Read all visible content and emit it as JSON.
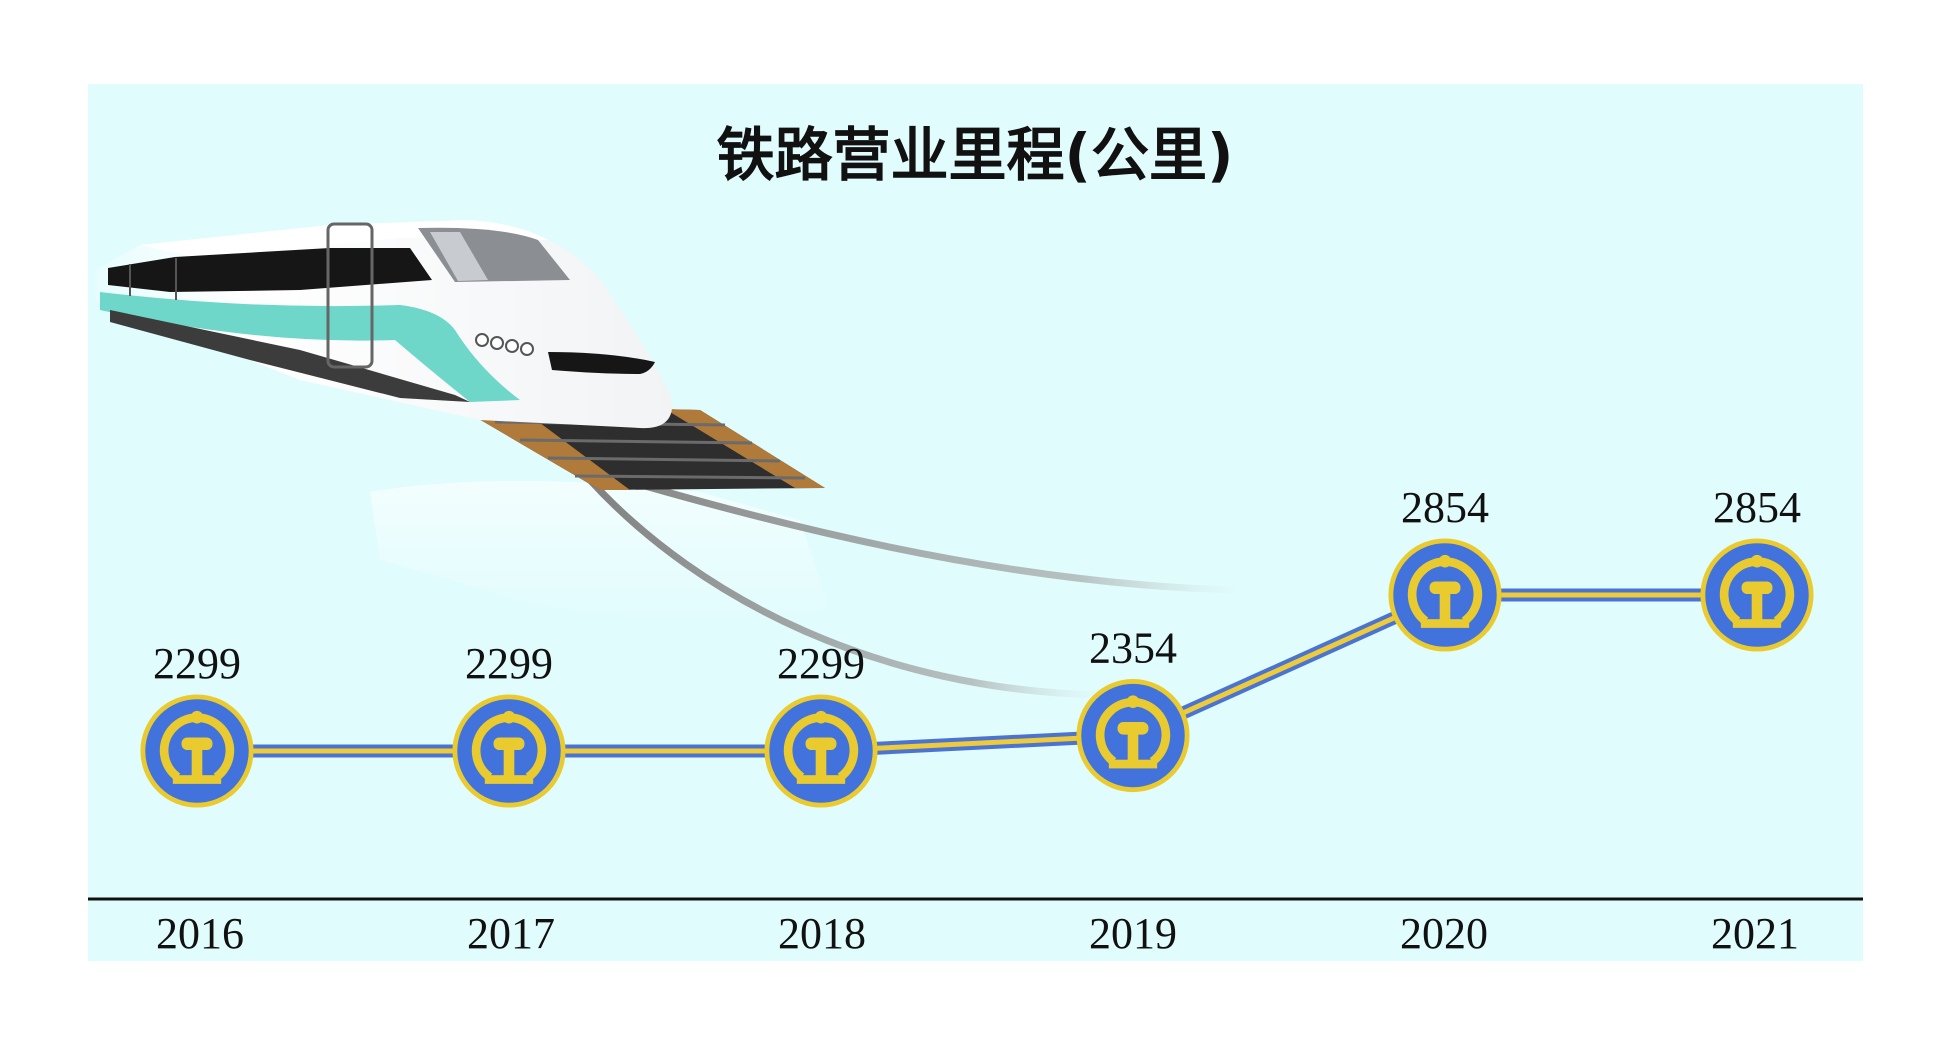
{
  "chart_data": {
    "type": "line",
    "title": "铁路营业里程(公里)",
    "categories": [
      "2016",
      "2017",
      "2018",
      "2019",
      "2020",
      "2021"
    ],
    "values": [
      2299,
      2299,
      2299,
      2354,
      2854,
      2854
    ],
    "data_labels": [
      "2299",
      "2299",
      "2299",
      "2354",
      "2854",
      "2854"
    ],
    "ylim": [
      2100,
      3000
    ],
    "grid": false,
    "legend": "none",
    "marker_icon": "railway-logo-icon",
    "colors": {
      "panel": "#E1FCFD",
      "line_blue": "#4A73D2",
      "line_gold": "#EDCB3A",
      "marker_fill": "#4272DB",
      "marker_ring": "#E9CB2F",
      "axis": "#111111",
      "train_body": "#F2F4F6",
      "train_stripe": "#6ED7C9",
      "rail_bronze": "#B07A3A"
    }
  }
}
